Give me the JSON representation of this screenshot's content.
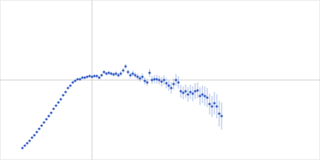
{
  "chart_data": {
    "type": "scatter",
    "x": [
      28,
      31,
      34,
      37,
      40,
      43,
      46,
      49,
      52,
      55,
      58,
      61,
      64,
      67,
      70,
      73,
      76,
      79,
      82,
      85,
      88,
      91,
      94,
      97,
      100,
      103,
      106,
      109,
      112,
      115,
      118,
      121,
      124,
      127,
      130,
      133,
      136,
      139,
      142,
      145,
      148,
      151,
      154,
      157,
      160,
      163,
      166,
      169,
      172,
      175,
      178,
      181,
      184,
      187,
      190,
      193,
      196,
      199,
      202,
      205,
      208,
      211,
      214,
      217,
      220,
      223,
      226,
      229,
      232,
      235,
      238,
      241,
      244,
      247,
      250,
      253,
      256,
      259,
      262,
      265,
      268,
      271,
      274,
      277
    ],
    "values": [
      15,
      18,
      21,
      24,
      28,
      31,
      35,
      39,
      43,
      47,
      51,
      55,
      59,
      64,
      68,
      72,
      76,
      81,
      85,
      90,
      93,
      97,
      99,
      101,
      101,
      103,
      103,
      104,
      105,
      104,
      105,
      105,
      103,
      106,
      110,
      108,
      109,
      108,
      107,
      108,
      106,
      108,
      112,
      117,
      110,
      106,
      108,
      106,
      104,
      102,
      104,
      99,
      97,
      109,
      100,
      101,
      101,
      100,
      98,
      100,
      96,
      93,
      90,
      95,
      100,
      97,
      86,
      84,
      86,
      82,
      85,
      83,
      86,
      87,
      80,
      82,
      80,
      78,
      70,
      67,
      71,
      67,
      58,
      55
    ],
    "errors": [
      0.8,
      0.8,
      0.8,
      0.8,
      0.8,
      0.8,
      0.8,
      0.8,
      0.8,
      0.8,
      0.8,
      0.8,
      0.9,
      0.9,
      0.9,
      0.9,
      1,
      1,
      1,
      1,
      1,
      1.2,
      1.2,
      1.2,
      1.5,
      1.5,
      1.5,
      1.5,
      1.6,
      1.6,
      1.8,
      1.8,
      2,
      2,
      2.2,
      2.2,
      2.5,
      2.5,
      2.5,
      2.8,
      2.8,
      3,
      3,
      3.2,
      3.2,
      3.5,
      3.5,
      3.5,
      4,
      4,
      4,
      4.5,
      4.5,
      5,
      5,
      5,
      5.5,
      5.5,
      6,
      6,
      6.5,
      6.5,
      7,
      7,
      7.5,
      7.5,
      8,
      8,
      8.5,
      9,
      9,
      9.5,
      10,
      10,
      11,
      11,
      12,
      12,
      13,
      13,
      14,
      15,
      16,
      17
    ],
    "xlim": [
      0,
      400
    ],
    "ylim": [
      0,
      200
    ],
    "xticks": [
      115
    ],
    "yticks": [
      100
    ],
    "grid": true,
    "tick_labels": false,
    "color": "#3a62c4",
    "marker": "circle"
  }
}
